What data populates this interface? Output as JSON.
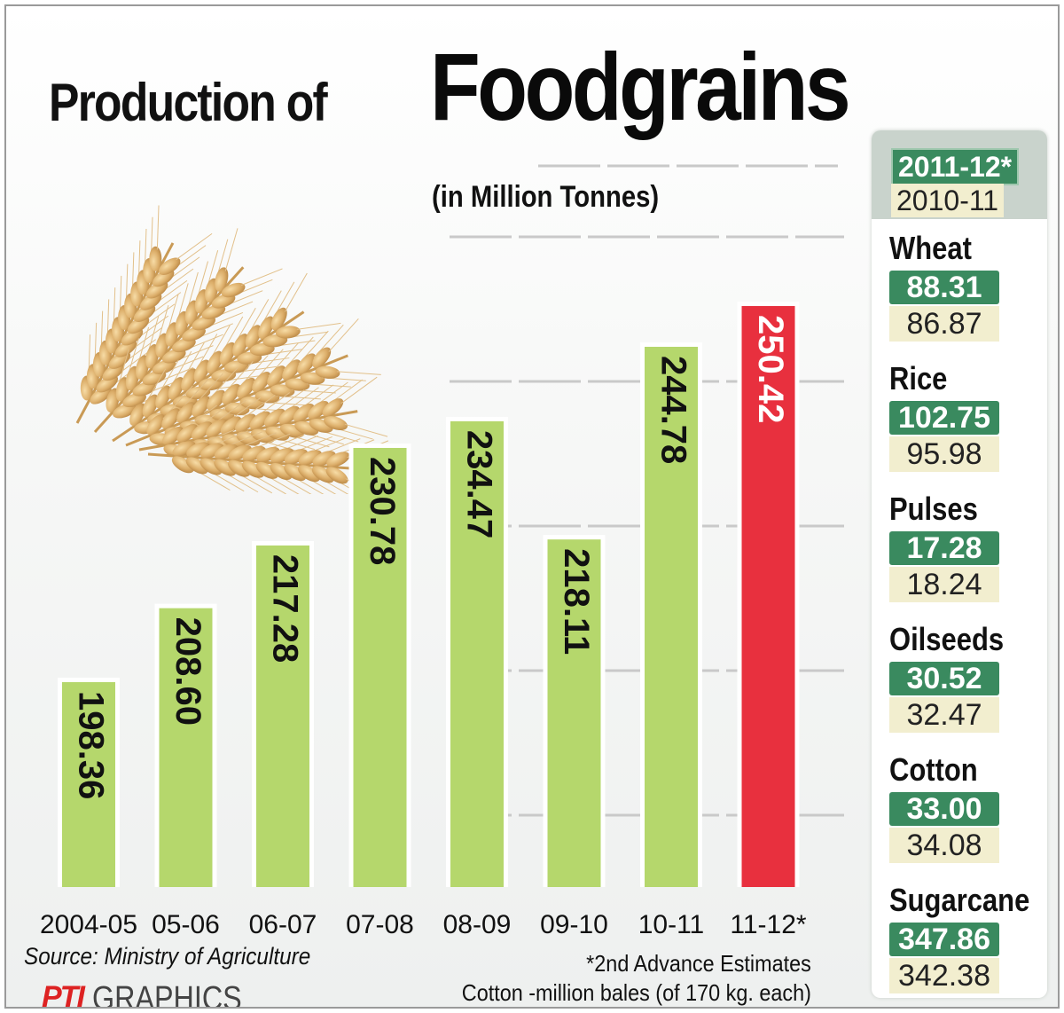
{
  "header": {
    "title_prefix": "Production of",
    "title_main": "Foodgrains",
    "subtitle": "(in Million Tonnes)"
  },
  "chart_data": {
    "type": "bar",
    "title": "Production of Foodgrains",
    "subtitle": "(in Million Tonnes)",
    "categories": [
      "2004-05",
      "05-06",
      "06-07",
      "07-08",
      "08-09",
      "09-10",
      "10-11",
      "11-12*"
    ],
    "values": [
      198.36,
      208.6,
      217.28,
      230.78,
      234.47,
      218.11,
      244.78,
      250.42
    ],
    "labels": [
      "198.36",
      "208.60",
      "217.28",
      "230.78",
      "234.47",
      "218.11",
      "244.78",
      "250.42"
    ],
    "highlight_index": 7,
    "colors": {
      "bar": "#b5d76c",
      "highlight": "#e8303e",
      "grid": "#c9c9c9"
    },
    "xlabel": "",
    "ylabel": "",
    "ylim": [
      170,
      260
    ],
    "grid": true,
    "legend": "none"
  },
  "side_panel": {
    "legend_current": "2011-12*",
    "legend_previous": "2010-11",
    "colors": {
      "current": "#3a8a5f",
      "previous": "#f2eecf"
    },
    "crops": [
      {
        "name": "Wheat",
        "current": "88.31",
        "previous": "86.87"
      },
      {
        "name": "Rice",
        "current": "102.75",
        "previous": "95.98"
      },
      {
        "name": "Pulses",
        "current": "17.28",
        "previous": "18.24"
      },
      {
        "name": "Oilseeds",
        "current": "30.52",
        "previous": "32.47"
      },
      {
        "name": "Cotton",
        "current": "33.00",
        "previous": "34.08"
      },
      {
        "name": "Sugarcane",
        "current": "347.86",
        "previous": "342.38"
      }
    ]
  },
  "footer": {
    "source": "Source: Ministry of Agriculture",
    "note1": "*2nd Advance Estimates",
    "note2": "Cotton -million bales (of 170 kg. each)",
    "credit_logo": "PTI",
    "credit_text": "GRAPHICS"
  }
}
